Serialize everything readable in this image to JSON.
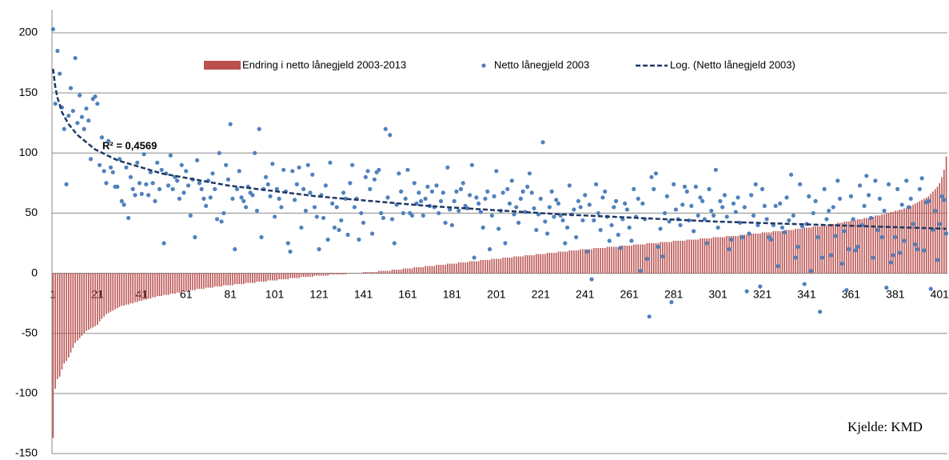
{
  "chart_data": {
    "type": "combo",
    "categories": [
      1,
      null,
      null,
      null,
      null,
      null,
      null,
      null,
      null,
      null,
      null,
      null,
      null,
      null,
      null,
      null,
      null,
      null,
      null,
      null,
      21,
      null,
      null,
      null,
      null,
      null,
      null,
      null,
      null,
      null,
      null,
      null,
      null,
      null,
      null,
      null,
      null,
      null,
      null,
      null,
      41,
      null,
      null,
      null,
      null,
      null,
      null,
      null,
      null,
      null,
      null,
      null,
      null,
      null,
      null,
      null,
      null,
      null,
      null,
      null,
      61,
      null,
      null,
      null,
      null,
      null,
      null,
      null,
      null,
      null,
      null,
      null,
      null,
      null,
      null,
      null,
      null,
      null,
      null,
      null,
      81,
      null,
      null,
      null,
      null,
      null,
      null,
      null,
      null,
      null,
      null,
      null,
      null,
      null,
      null,
      null,
      null,
      null,
      null,
      null,
      101,
      null,
      null,
      null,
      null,
      null,
      null,
      null,
      null,
      null,
      null,
      null,
      null,
      null,
      null,
      null,
      null,
      null,
      null,
      null,
      121,
      null,
      null,
      null,
      null,
      null,
      null,
      null,
      null,
      null,
      null,
      null,
      null,
      null,
      null,
      null,
      null,
      null,
      null,
      null,
      141,
      null,
      null,
      null,
      null,
      null,
      null,
      null,
      null,
      null,
      null,
      null,
      null,
      null,
      null,
      null,
      null,
      null,
      null,
      null,
      161,
      null,
      null,
      null,
      null,
      null,
      null,
      null,
      null,
      null,
      null,
      null,
      null,
      null,
      null,
      null,
      null,
      null,
      null,
      null,
      181,
      null,
      null,
      null,
      null,
      null,
      null,
      null,
      null,
      null,
      null,
      null,
      null,
      null,
      null,
      null,
      null,
      null,
      null,
      null,
      201,
      null,
      null,
      null,
      null,
      null,
      null,
      null,
      null,
      null,
      null,
      null,
      null,
      null,
      null,
      null,
      null,
      null,
      null,
      null,
      221,
      null,
      null,
      null,
      null,
      null,
      null,
      null,
      null,
      null,
      null,
      null,
      null,
      null,
      null,
      null,
      null,
      null,
      null,
      null,
      241,
      null,
      null,
      null,
      null,
      null,
      null,
      null,
      null,
      null,
      null,
      null,
      null,
      null,
      null,
      null,
      null,
      null,
      null,
      null,
      261,
      null,
      null,
      null,
      null,
      null,
      null,
      null,
      null,
      null,
      null,
      null,
      null,
      null,
      null,
      null,
      null,
      null,
      null,
      null,
      281,
      null,
      null,
      null,
      null,
      null,
      null,
      null,
      null,
      null,
      null,
      null,
      null,
      null,
      null,
      null,
      null,
      null,
      null,
      null,
      301,
      null,
      null,
      null,
      null,
      null,
      null,
      null,
      null,
      null,
      null,
      null,
      null,
      null,
      null,
      null,
      null,
      null,
      null,
      null,
      321,
      null,
      null,
      null,
      null,
      null,
      null,
      null,
      null,
      null,
      null,
      null,
      null,
      null,
      null,
      null,
      null,
      null,
      null,
      null,
      341,
      null,
      null,
      null,
      null,
      null,
      null,
      null,
      null,
      null,
      null,
      null,
      null,
      null,
      null,
      null,
      null,
      null,
      null,
      null,
      361,
      null,
      null,
      null,
      null,
      null,
      null,
      null,
      null,
      null,
      null,
      null,
      null,
      null,
      null,
      null,
      null,
      null,
      null,
      null,
      381,
      null,
      null,
      null,
      null,
      null,
      null,
      null,
      null,
      null,
      null,
      null,
      null,
      null,
      null,
      null,
      null,
      null,
      null,
      null,
      401,
      null,
      null,
      null
    ],
    "series": [
      {
        "name": "Endring i netto lånegjeld 2003-2013",
        "type": "bar",
        "color": "#b9504e",
        "values": [
          -137,
          -96,
          -88,
          -86,
          -80,
          -75,
          -73,
          -70,
          -66,
          -62,
          -58,
          -56,
          -54,
          -52,
          -50,
          -48,
          -47,
          -46,
          -45,
          -44,
          -43,
          -40,
          -38,
          -36,
          -34,
          -33,
          -32,
          -31,
          -30,
          -29,
          -28,
          -27,
          -27,
          -26,
          -26,
          -25,
          -25,
          -24,
          -24,
          -23,
          -23,
          -22,
          -22,
          -21,
          -21,
          -20,
          -20,
          -19,
          -19,
          -19,
          -18,
          -18,
          -18,
          -17,
          -17,
          -17,
          -16,
          -16,
          -16,
          -15,
          -15,
          -15,
          -14,
          -14,
          -14,
          -13,
          -13,
          -13,
          -13,
          -12,
          -12,
          -12,
          -12,
          -11,
          -11,
          -11,
          -11,
          -10,
          -10,
          -10,
          -10,
          -10,
          -9,
          -9,
          -9,
          -9,
          -9,
          -8,
          -8,
          -8,
          -8,
          -8,
          -7,
          -7,
          -7,
          -7,
          -7,
          -6,
          -6,
          -6,
          -6,
          -6,
          -5,
          -5,
          -5,
          -5,
          -5,
          -4,
          -4,
          -4,
          -4,
          -4,
          -3,
          -3,
          -3,
          -3,
          -3,
          -3,
          -2,
          -2,
          -2,
          -2,
          -2,
          -2,
          -2,
          -1,
          -1,
          -1,
          -1,
          -1,
          -1,
          -1,
          -1,
          0,
          0,
          0,
          0,
          0,
          0,
          0,
          1,
          1,
          1,
          1,
          1,
          1,
          1,
          2,
          2,
          2,
          2,
          2,
          2,
          3,
          3,
          3,
          3,
          3,
          4,
          4,
          4,
          4,
          4,
          5,
          5,
          5,
          5,
          5,
          6,
          6,
          6,
          6,
          6,
          7,
          7,
          7,
          7,
          7,
          8,
          8,
          8,
          8,
          8,
          9,
          9,
          9,
          9,
          9,
          10,
          10,
          10,
          10,
          10,
          11,
          11,
          11,
          11,
          11,
          12,
          12,
          12,
          12,
          12,
          13,
          13,
          13,
          13,
          13,
          14,
          14,
          14,
          14,
          14,
          15,
          15,
          15,
          15,
          15,
          16,
          16,
          16,
          16,
          16,
          17,
          17,
          17,
          17,
          17,
          18,
          18,
          18,
          18,
          18,
          19,
          19,
          19,
          19,
          19,
          20,
          20,
          20,
          20,
          20,
          20,
          21,
          21,
          21,
          21,
          21,
          21,
          22,
          22,
          22,
          22,
          22,
          22,
          23,
          23,
          23,
          23,
          23,
          23,
          24,
          24,
          24,
          24,
          24,
          24,
          25,
          25,
          25,
          25,
          25,
          25,
          26,
          26,
          26,
          26,
          26,
          26,
          27,
          27,
          27,
          27,
          27,
          27,
          28,
          28,
          28,
          28,
          28,
          28,
          29,
          29,
          29,
          29,
          29,
          29,
          30,
          30,
          30,
          30,
          30,
          30,
          31,
          31,
          31,
          31,
          31,
          31,
          32,
          32,
          32,
          32,
          32,
          33,
          33,
          33,
          33,
          33,
          34,
          34,
          34,
          34,
          34,
          35,
          35,
          35,
          35,
          35,
          36,
          36,
          36,
          36,
          36,
          37,
          37,
          37,
          37,
          38,
          38,
          38,
          38,
          39,
          39,
          39,
          39,
          40,
          40,
          40,
          40,
          41,
          41,
          41,
          42,
          42,
          42,
          43,
          43,
          43,
          44,
          44,
          44,
          45,
          45,
          45,
          46,
          46,
          46,
          47,
          47,
          48,
          48,
          48,
          49,
          49,
          50,
          50,
          51,
          51,
          52,
          52,
          53,
          53,
          54,
          54,
          55,
          56,
          57,
          58,
          59,
          60,
          61,
          62,
          63,
          64,
          66,
          68,
          70,
          72,
          75,
          80,
          86,
          97
        ]
      },
      {
        "name": "Netto lånegjeld 2003",
        "type": "scatter",
        "color": "#4f81bd",
        "values": [
          203,
          141,
          185,
          166,
          138,
          120,
          74,
          131,
          154,
          135,
          179,
          125,
          148,
          130,
          120,
          137,
          127,
          95,
          145,
          147,
          141,
          90,
          113,
          85,
          75,
          110,
          88,
          84,
          72,
          72,
          95,
          60,
          57,
          88,
          46,
          80,
          70,
          65,
          92,
          75,
          66,
          99,
          74,
          65,
          84,
          75,
          60,
          92,
          70,
          86,
          25,
          83,
          73,
          98,
          70,
          80,
          77,
          62,
          90,
          67,
          85,
          73,
          48,
          78,
          30,
          94,
          75,
          70,
          62,
          56,
          77,
          63,
          83,
          70,
          45,
          100,
          43,
          50,
          90,
          78,
          124,
          62,
          20,
          70,
          85,
          63,
          60,
          55,
          72,
          67,
          65,
          100,
          52,
          120,
          30,
          70,
          80,
          74,
          64,
          91,
          47,
          70,
          62,
          55,
          86,
          68,
          25,
          18,
          85,
          61,
          74,
          88,
          38,
          70,
          52,
          90,
          67,
          82,
          55,
          47,
          20,
          65,
          46,
          73,
          28,
          92,
          58,
          38,
          55,
          36,
          44,
          67,
          62,
          32,
          75,
          90,
          55,
          62,
          28,
          50,
          42,
          80,
          85,
          70,
          33,
          78,
          84,
          86,
          50,
          46,
          120,
          63,
          115,
          45,
          25,
          57,
          83,
          68,
          50,
          62,
          86,
          50,
          48,
          75,
          58,
          67,
          60,
          48,
          62,
          72,
          56,
          68,
          55,
          73,
          50,
          60,
          67,
          42,
          88,
          53,
          40,
          60,
          68,
          52,
          70,
          75,
          56,
          54,
          65,
          90,
          13,
          63,
          58,
          51,
          38,
          62,
          68,
          20,
          48,
          64,
          85,
          37,
          52,
          67,
          25,
          70,
          58,
          77,
          49,
          55,
          42,
          62,
          68,
          51,
          72,
          83,
          67,
          54,
          36,
          49,
          62,
          109,
          43,
          33,
          55,
          68,
          47,
          61,
          58,
          48,
          44,
          25,
          38,
          73,
          49,
          53,
          30,
          60,
          55,
          44,
          65,
          18,
          57,
          -5,
          44,
          74,
          50,
          36,
          63,
          68,
          47,
          27,
          40,
          55,
          60,
          32,
          21,
          45,
          58,
          53,
          38,
          27,
          70,
          47,
          62,
          2,
          58,
          45,
          12,
          -36,
          80,
          70,
          83,
          22,
          37,
          14,
          50,
          64,
          43,
          -24,
          74,
          53,
          45,
          40,
          57,
          72,
          68,
          44,
          56,
          35,
          72,
          48,
          63,
          60,
          45,
          25,
          70,
          52,
          48,
          86,
          38,
          60,
          55,
          65,
          47,
          20,
          28,
          58,
          51,
          63,
          42,
          30,
          55,
          -15,
          33,
          65,
          48,
          74,
          40,
          -11,
          70,
          56,
          45,
          30,
          28,
          40,
          56,
          6,
          58,
          38,
          34,
          63,
          44,
          82,
          48,
          13,
          22,
          74,
          39,
          -9,
          41,
          64,
          2,
          50,
          60,
          30,
          -32,
          13,
          70,
          45,
          52,
          15,
          55,
          31,
          77,
          62,
          8,
          35,
          -14,
          20,
          64,
          45,
          19,
          22,
          73,
          40,
          56,
          81,
          65,
          46,
          13,
          77,
          36,
          62,
          30,
          52,
          -12,
          74,
          9,
          15,
          30,
          70,
          17,
          57,
          27,
          77,
          55,
          62,
          41,
          24,
          20,
          70,
          79,
          19,
          59,
          60,
          -13,
          36,
          52,
          11,
          41,
          64,
          61,
          33
        ]
      },
      {
        "name": "Log. (Netto lånegjeld 2003)",
        "type": "line",
        "color": "#1f3864",
        "dashed": true,
        "x": [
          1,
          2,
          3,
          5,
          8,
          12,
          20,
          30,
          50,
          80,
          120,
          170,
          230,
          300,
          404
        ],
        "values": [
          170,
          155,
          146,
          134,
          124,
          115,
          103,
          94,
          83,
          73,
          64,
          56,
          49,
          43,
          37
        ]
      }
    ],
    "ylim": [
      -150,
      200
    ],
    "yticks": [
      -150,
      -100,
      -50,
      0,
      50,
      100,
      150,
      200
    ],
    "grid": true,
    "legend": "top",
    "annotations": [
      {
        "text": "R² = 0,4569"
      },
      {
        "text": "Kjelde: KMD"
      }
    ]
  }
}
